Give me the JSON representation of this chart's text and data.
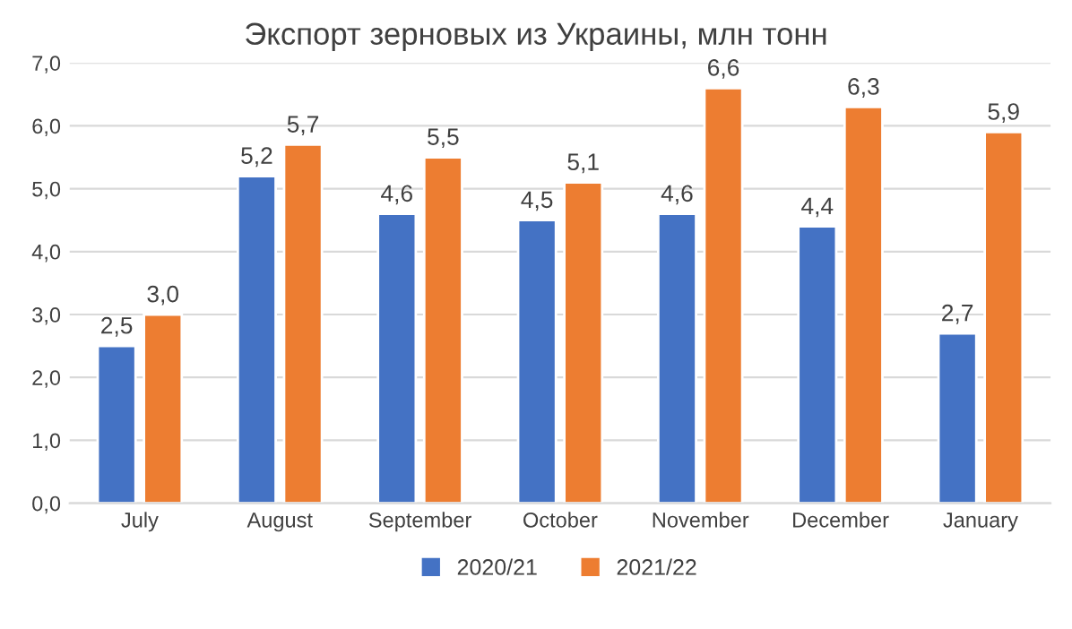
{
  "chart_data": {
    "type": "bar",
    "title": "Экспорт зерновых из Украины, млн тонн",
    "categories": [
      "July",
      "August",
      "September",
      "October",
      "November",
      "December",
      "January"
    ],
    "series": [
      {
        "name": "2020/21",
        "color": "#4472c4",
        "values": [
          2.5,
          5.2,
          4.6,
          4.5,
          4.6,
          4.4,
          2.7
        ],
        "value_labels": [
          "2,5",
          "5,2",
          "4,6",
          "4,5",
          "4,6",
          "4,4",
          "2,7"
        ]
      },
      {
        "name": "2021/22",
        "color": "#ed7d31",
        "values": [
          3.0,
          5.7,
          5.5,
          5.1,
          6.6,
          6.3,
          5.9
        ],
        "value_labels": [
          "3,0",
          "5,7",
          "5,5",
          "5,1",
          "6,6",
          "6,3",
          "5,9"
        ]
      }
    ],
    "ylim": [
      0,
      7
    ],
    "yticks": [
      {
        "value": 0,
        "label": "0,0"
      },
      {
        "value": 1,
        "label": "1,0"
      },
      {
        "value": 2,
        "label": "2,0"
      },
      {
        "value": 3,
        "label": "3,0"
      },
      {
        "value": 4,
        "label": "4,0"
      },
      {
        "value": 5,
        "label": "5,0"
      },
      {
        "value": 6,
        "label": "6,0"
      },
      {
        "value": 7,
        "label": "7,0"
      }
    ],
    "grid": "y",
    "legend": "bottom"
  }
}
